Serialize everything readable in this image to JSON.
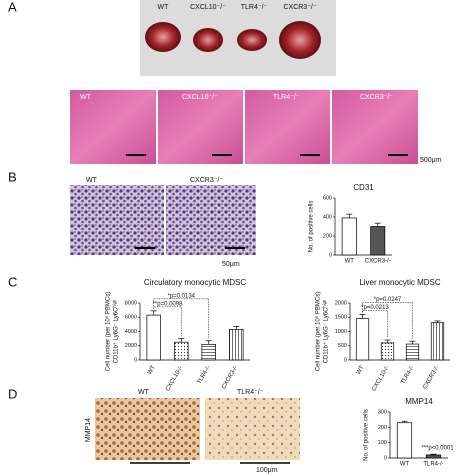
{
  "panel_labels": [
    "A",
    "B",
    "C",
    "D"
  ],
  "photo_labels": [
    "WT",
    "CXCL10⁻/⁻",
    "TLR4⁻/⁻",
    "CXCR3⁻/⁻"
  ],
  "histology_labels": [
    "WT",
    "CXCL10⁻/⁻",
    "TLR4⁻/⁻",
    "CXCR3⁻/⁻"
  ],
  "histology_scale": "500μm",
  "ihc_b_labels": [
    "WT",
    "CXCR3⁻/⁻"
  ],
  "ihc_b_scale": "50μm",
  "ihc_d_labels": [
    "WT",
    "TLR4⁻/⁻"
  ],
  "ihc_d_stain": "MMP14",
  "ihc_d_scale": "100μm",
  "chart_data": [
    {
      "type": "bar",
      "title": "CD31",
      "ylabel": [
        "No. of positive cells"
      ],
      "categories": [
        "WT",
        "CXCR3-/-"
      ],
      "values": [
        390,
        300
      ],
      "errors": [
        40,
        35
      ],
      "colors": [
        "#ffffff",
        "#555555"
      ],
      "patterns": [
        "none",
        "none"
      ],
      "ylim": [
        0,
        600
      ],
      "yticks": [
        0,
        200,
        400,
        600
      ],
      "annotations": []
    },
    {
      "type": "bar",
      "title": "Circulatory monocytic MDSC",
      "ylabel": [
        "Cell number (per 10⁵ PBMCs)",
        "CD11b⁺ Ly6G⁻ Ly6Cʰⁱᵍʰ"
      ],
      "categories": [
        "WT",
        "CXCL10-/-",
        "TLR4-/-",
        "CXCR3-/-"
      ],
      "values": [
        6300,
        2500,
        2200,
        4300
      ],
      "errors": [
        600,
        500,
        500,
        400
      ],
      "colors": [
        "#ffffff",
        "#ffffff",
        "#ffffff",
        "#ffffff"
      ],
      "patterns": [
        "none",
        "dots",
        "hlines",
        "vlines"
      ],
      "ylim": [
        0,
        8000
      ],
      "yticks": [
        0,
        2000,
        4000,
        6000,
        8000
      ],
      "annotations": [
        "**p=0.0098",
        "*p=0.0134"
      ]
    },
    {
      "type": "bar",
      "title": "Liver monocytic MDSC",
      "ylabel": [
        "Cell number (per 10⁵ PBMCs)",
        "CD11b⁺ Ly6G⁻ Ly6Cʰⁱᵍʰ"
      ],
      "categories": [
        "WT",
        "CXCL10-/-",
        "TLR4-/-",
        "CXCR3-/-"
      ],
      "values": [
        1450,
        600,
        560,
        1310
      ],
      "errors": [
        150,
        100,
        100,
        60
      ],
      "colors": [
        "#ffffff",
        "#ffffff",
        "#ffffff",
        "#ffffff"
      ],
      "patterns": [
        "none",
        "dots",
        "hlines",
        "vlines"
      ],
      "ylim": [
        0,
        2000
      ],
      "yticks": [
        0,
        500,
        1000,
        1500,
        2000
      ],
      "annotations": [
        "*p=0.0213",
        "*p=0.0247"
      ]
    },
    {
      "type": "bar",
      "title": "MMP14",
      "ylabel": [
        "No. of positive cells"
      ],
      "categories": [
        "WT",
        "TLR4-/-"
      ],
      "values": [
        230,
        20
      ],
      "errors": [
        10,
        5
      ],
      "colors": [
        "#ffffff",
        "#555555"
      ],
      "patterns": [
        "none",
        "none"
      ],
      "ylim": [
        0,
        300
      ],
      "yticks": [
        0,
        100,
        200,
        300
      ],
      "annotations": [
        "***p<0.0001"
      ]
    }
  ]
}
